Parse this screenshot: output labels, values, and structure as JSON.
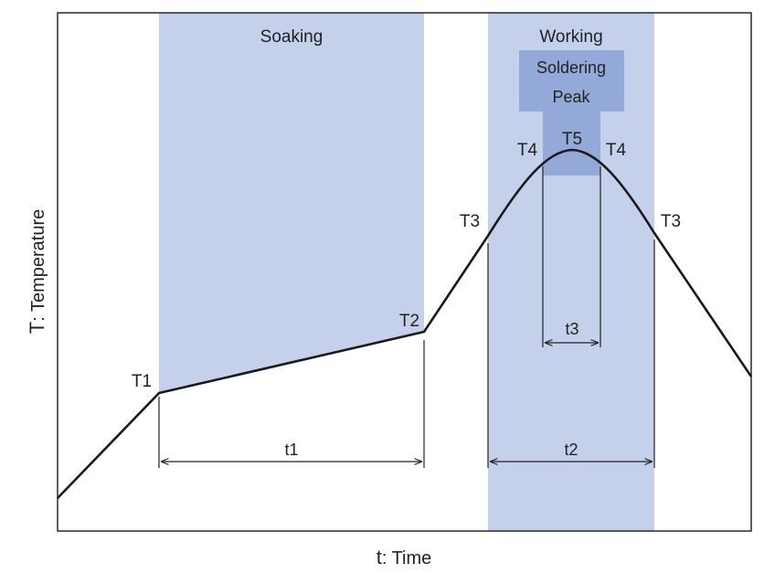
{
  "colors": {
    "region_light": "#c5d1ea",
    "region_dark": "#93a9d8",
    "curve": "#1a1a1a",
    "frame": "#1a1a1a"
  },
  "axes": {
    "x_title_prefix": "t",
    "x_title_rest": ": Time",
    "y_title_prefix": "T",
    "y_title_rest": ": Temperature"
  },
  "regions": {
    "soaking": "Soaking",
    "working": "Working",
    "soldering_line1": "Soldering",
    "soldering_line2": "Peak"
  },
  "points": {
    "t1": "T1",
    "t2": "T2",
    "t3_left": "T3",
    "t3_right": "T3",
    "t4_left": "T4",
    "t4_right": "T4",
    "t5": "T5"
  },
  "durations": {
    "t1": "t1",
    "t2": "t2",
    "t3": "t3"
  }
}
